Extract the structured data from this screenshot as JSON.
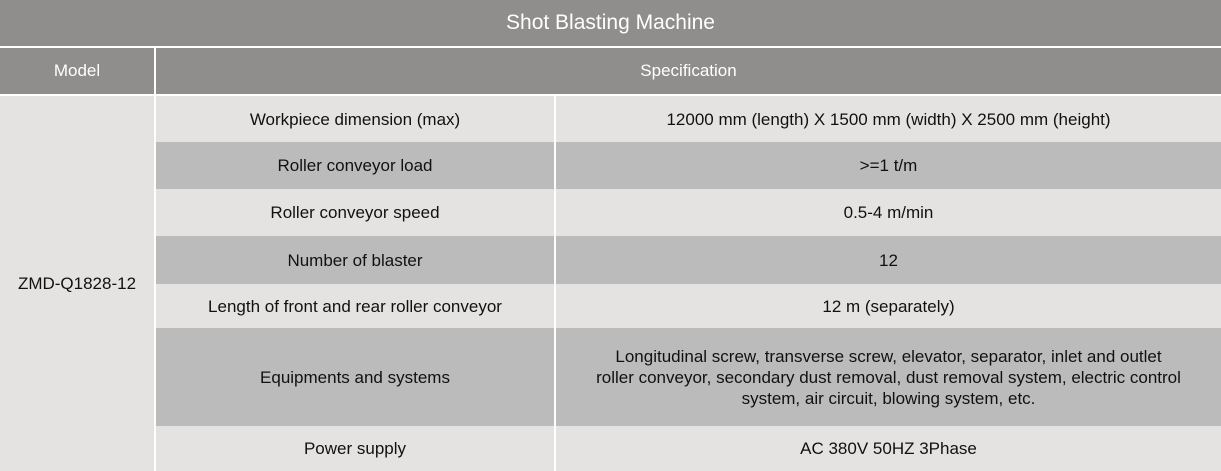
{
  "title": "Shot Blasting Machine",
  "headers": {
    "model": "Model",
    "spec": "Specification"
  },
  "model": "ZMD-Q1828-12",
  "rows": [
    {
      "k": "Workpiece dimension (max)",
      "v": "12000 mm (length) X 1500 mm (width) X 2500 mm (height)"
    },
    {
      "k": "Roller conveyor load",
      "v": ">=1 t/m"
    },
    {
      "k": "Roller conveyor speed",
      "v": "0.5-4 m/min"
    },
    {
      "k": "Number of blaster",
      "v": "12"
    },
    {
      "k": "Length of front and rear roller conveyor",
      "v": "12 m (separately)"
    },
    {
      "k": "Equipments and systems",
      "v": "Longitudinal screw, transverse screw, elevator, separator, inlet and outlet roller conveyor, secondary dust removal, dust removal system, electric control system, air circuit, blowing system, etc."
    },
    {
      "k": "Power supply",
      "v": "AC 380V 50HZ 3Phase"
    }
  ],
  "colors": {
    "header": "#8f8e8c",
    "row_light": "#e4e3e1",
    "row_dark": "#bbbbbb"
  }
}
